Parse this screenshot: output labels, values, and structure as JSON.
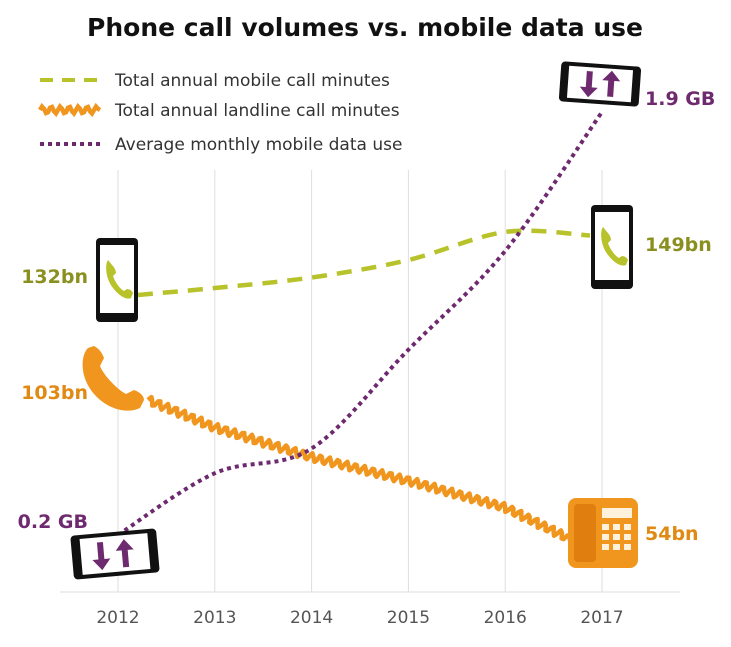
{
  "chart_data": {
    "type": "line",
    "title": "Phone call volumes vs. mobile data use",
    "xlabel": "",
    "ylabel": "",
    "grid": "vertical",
    "legend_position": "top-left",
    "x": [
      "2012",
      "2013",
      "2014",
      "2015",
      "2016",
      "2017"
    ],
    "series": [
      {
        "name": "Total annual mobile call minutes",
        "color": "#b8c22a",
        "style": "dashed",
        "unit": "bn minutes",
        "values": [
          132,
          134,
          137,
          142,
          150,
          149
        ],
        "start_label": "132bn",
        "end_label": "149bn"
      },
      {
        "name": "Total annual landline call minutes",
        "color": "#f0961e",
        "style": "wavy",
        "unit": "bn minutes",
        "values": [
          103,
          92,
          82,
          74,
          65,
          54
        ],
        "start_label": "103bn",
        "end_label": "54bn"
      },
      {
        "name": "Average monthly mobile data use",
        "color": "#6e2a6e",
        "style": "dotted",
        "unit": "GB",
        "values": [
          0.2,
          0.45,
          0.55,
          0.95,
          1.35,
          1.9
        ],
        "start_label": "0.2 GB",
        "end_label": "1.9 GB"
      }
    ],
    "icons": [
      "mobile-phone-icon",
      "landline-handset-icon",
      "desk-telephone-icon",
      "data-transfer-phone-icon"
    ]
  }
}
